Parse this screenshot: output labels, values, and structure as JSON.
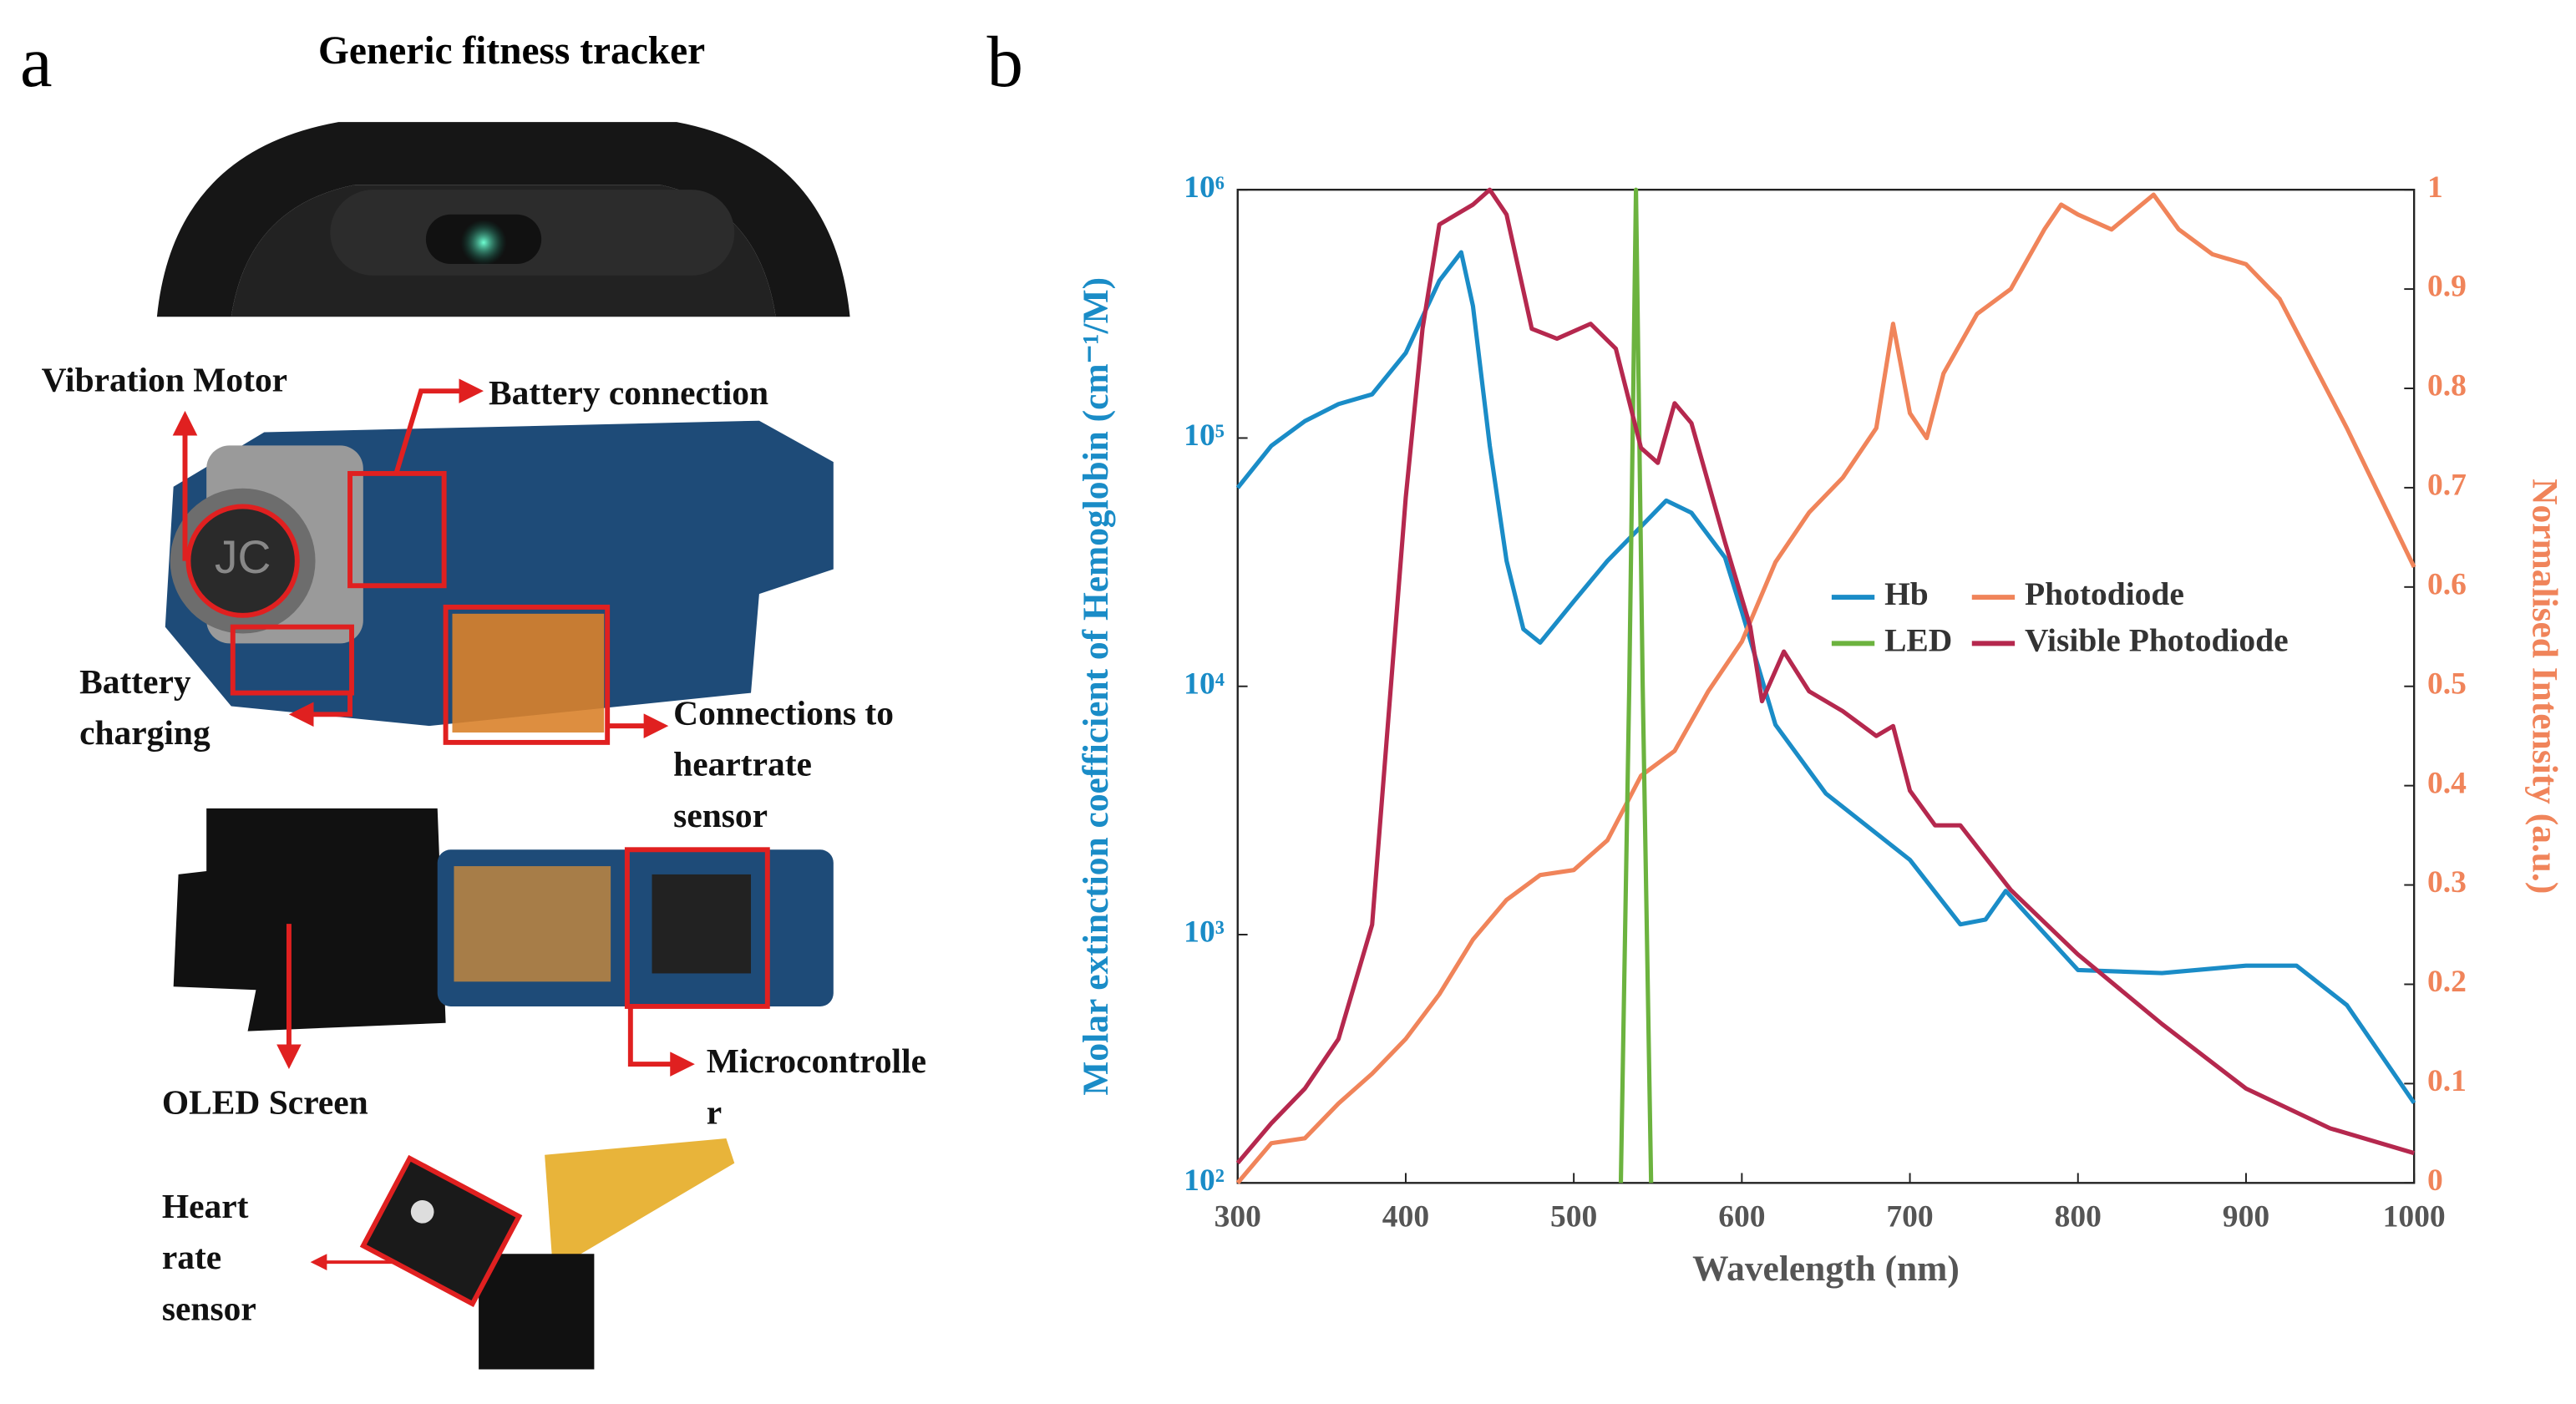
{
  "panel_a": {
    "label": "a",
    "title": "Generic fitness tracker",
    "labels": [
      {
        "lines": [
          "Vibration Motor"
        ]
      },
      {
        "lines": [
          "Battery connection"
        ]
      },
      {
        "lines": [
          "Battery",
          "charging"
        ]
      },
      {
        "lines": [
          "Connections to",
          "heartrate",
          "sensor"
        ]
      },
      {
        "lines": [
          "OLED Screen"
        ]
      },
      {
        "lines": [
          "Microcontrolle",
          "r"
        ]
      },
      {
        "lines": [
          "Heart",
          "rate",
          "sensor"
        ]
      }
    ]
  },
  "chart_data": {
    "type": "line",
    "panel_label": "b",
    "xlabel": "Wavelength (nm)",
    "ylabel": "Molar extinction coefficient of Hemoglobin (cm⁻¹/M)",
    "y2label": "Normalised Intensity (a.u.)",
    "xlim": [
      300,
      1000
    ],
    "xticks": [
      300,
      400,
      500,
      600,
      700,
      800,
      900,
      1000
    ],
    "ylim": [
      100,
      1000000
    ],
    "log_scale": "y",
    "yticks": [
      {
        "value": 100,
        "label": "10²"
      },
      {
        "value": 1000,
        "label": "10³"
      },
      {
        "value": 10000,
        "label": "10⁴"
      },
      {
        "value": 100000,
        "label": "10⁵"
      },
      {
        "value": 1000000,
        "label": "10⁶"
      }
    ],
    "y2lim": [
      0,
      1
    ],
    "y2ticks": [
      0,
      0.1,
      0.2,
      0.3,
      0.4,
      0.5,
      0.6,
      0.7,
      0.8,
      0.9,
      1
    ],
    "ycolor": "#1a8cc7",
    "y2color": "#f0845a",
    "grid": false,
    "legend": "center right",
    "series": [
      {
        "name": "Hb",
        "color": "#1a8cc7",
        "axis": "y",
        "x": [
          300,
          320,
          340,
          360,
          380,
          400,
          420,
          433,
          440,
          450,
          460,
          470,
          480,
          500,
          520,
          540,
          555,
          570,
          590,
          600,
          620,
          650,
          700,
          730,
          745,
          757,
          770,
          800,
          850,
          900,
          930,
          960,
          1000
        ],
        "values": [
          63000,
          93000,
          117000,
          137000,
          150000,
          220000,
          430000,
          560000,
          340000,
          93000,
          32000,
          17000,
          15000,
          22000,
          32000,
          44000,
          56000,
          50000,
          33000,
          20000,
          7000,
          3700,
          2000,
          1100,
          1150,
          1500,
          1200,
          720,
          700,
          750,
          750,
          520,
          210
        ]
      },
      {
        "name": "Photodiode",
        "color": "#f0845a",
        "axis": "y2",
        "x": [
          300,
          320,
          340,
          360,
          380,
          400,
          420,
          440,
          460,
          480,
          500,
          520,
          540,
          560,
          580,
          600,
          620,
          640,
          660,
          680,
          690,
          700,
          710,
          720,
          740,
          760,
          780,
          790,
          800,
          820,
          845,
          860,
          880,
          900,
          920,
          940,
          960,
          980,
          1000
        ],
        "values": [
          0,
          0.04,
          0.045,
          0.08,
          0.11,
          0.145,
          0.19,
          0.245,
          0.285,
          0.31,
          0.315,
          0.345,
          0.41,
          0.435,
          0.495,
          0.545,
          0.625,
          0.675,
          0.71,
          0.76,
          0.865,
          0.775,
          0.75,
          0.815,
          0.875,
          0.9,
          0.96,
          0.985,
          0.975,
          0.96,
          0.995,
          0.96,
          0.935,
          0.925,
          0.89,
          0.825,
          0.76,
          0.69,
          0.62
        ]
      },
      {
        "name": "LED",
        "color": "#6cb33f",
        "axis": "y2",
        "x": [
          528,
          533,
          537,
          541,
          546
        ],
        "values": [
          0,
          0.5,
          1,
          0.5,
          0
        ]
      },
      {
        "name": "Visible Photodiode",
        "color": "#b5284e",
        "axis": "y2",
        "x": [
          300,
          320,
          340,
          360,
          380,
          400,
          410,
          420,
          440,
          450,
          460,
          475,
          490,
          510,
          525,
          540,
          550,
          560,
          570,
          590,
          605,
          612,
          625,
          640,
          660,
          680,
          690,
          700,
          715,
          730,
          760,
          800,
          850,
          900,
          950,
          1000
        ],
        "values": [
          0.02,
          0.06,
          0.095,
          0.145,
          0.26,
          0.69,
          0.86,
          0.965,
          0.985,
          1,
          0.975,
          0.86,
          0.85,
          0.865,
          0.84,
          0.74,
          0.725,
          0.785,
          0.765,
          0.645,
          0.56,
          0.485,
          0.535,
          0.495,
          0.475,
          0.45,
          0.46,
          0.395,
          0.36,
          0.36,
          0.295,
          0.23,
          0.16,
          0.095,
          0.055,
          0.03
        ]
      }
    ]
  }
}
